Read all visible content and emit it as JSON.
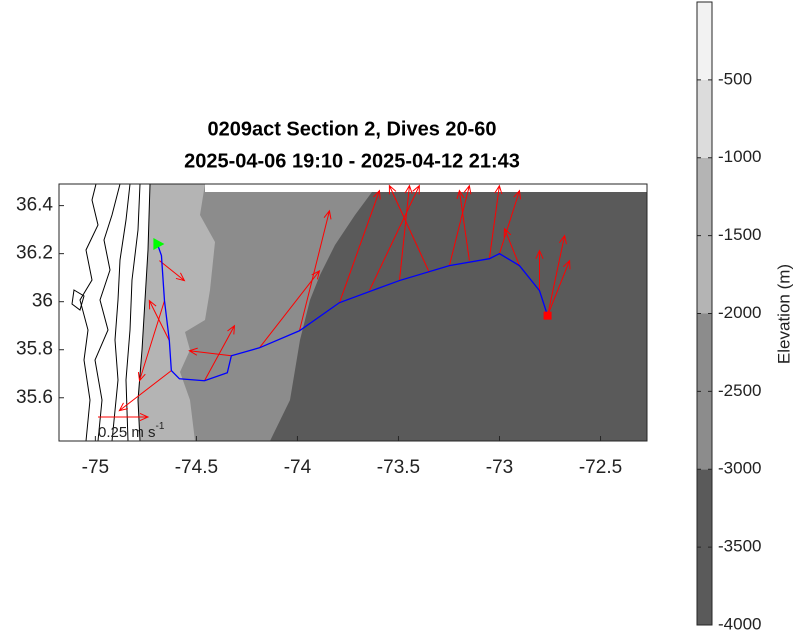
{
  "chart_data": {
    "type": "map",
    "title": [
      "0209act Section 2, Dives 20-60",
      "2025-04-06 19:10 - 2025-04-12 21:43"
    ],
    "xlim": [
      -75.18,
      -72.27
    ],
    "ylim": [
      35.42,
      36.49
    ],
    "xticks": [
      -75,
      -74.5,
      -74,
      -73.5,
      -73,
      -72.5
    ],
    "yticks": [
      35.6,
      35.8,
      36,
      36.2,
      36.4
    ],
    "track": {
      "color": "#0000ff",
      "x": [
        -74.693,
        -74.673,
        -74.658,
        -74.634,
        -74.624,
        -74.584,
        -74.46,
        -74.347,
        -74.327,
        -74.188,
        -73.99,
        -73.792,
        -73.495,
        -73.248,
        -73.05,
        -73.0,
        -72.901,
        -72.802,
        -72.762
      ],
      "y": [
        36.24,
        36.192,
        36.004,
        35.838,
        35.713,
        35.679,
        35.671,
        35.704,
        35.775,
        35.808,
        35.879,
        35.996,
        36.088,
        36.15,
        36.179,
        36.2,
        36.15,
        36.046,
        35.942
      ]
    },
    "start": {
      "x": -74.693,
      "y": 36.24,
      "color": "#00ff00"
    },
    "end": {
      "x": -72.762,
      "y": 35.942,
      "color": "#ff0000"
    },
    "arrows": {
      "color": "#ff0000",
      "x": [
        -74.658,
        -74.634,
        -74.683,
        -74.624,
        -74.46,
        -74.327,
        -74.188,
        -73.99,
        -73.792,
        -73.644,
        -73.495,
        -73.347,
        -73.248,
        -73.149,
        -73.05,
        -73.0,
        -72.901,
        -72.802,
        -72.762,
        -72.762
      ],
      "y": [
        36.004,
        35.838,
        36.171,
        35.713,
        35.671,
        35.775,
        35.808,
        35.879,
        35.996,
        36.046,
        36.088,
        36.121,
        36.15,
        36.171,
        36.179,
        36.2,
        36.15,
        36.046,
        35.942,
        35.942
      ],
      "u": [
        -0.125,
        -0.1,
        0.125,
        -0.26,
        0.15,
        -0.21,
        0.3,
        0.15,
        0.2,
        0.25,
        0.05,
        -0.2,
        0.1,
        -0.05,
        0.05,
        0.1,
        -0.075,
        0,
        0.085,
        0.11
      ],
      "v": [
        -0.4,
        0.2,
        -0.1,
        -0.2,
        0.275,
        0.025,
        0.385,
        0.6,
        0.56,
        0.525,
        0.475,
        0.435,
        0.4,
        0.35,
        0.365,
        0.315,
        0.185,
        0.2,
        0.4,
        0.275
      ]
    },
    "scale_arrow": {
      "value": 0.25,
      "label": "0.25 m s",
      "label_sup": "-1"
    },
    "colorbar": {
      "label": "Elevation (m)",
      "lim": [
        -4000,
        0
      ],
      "ticks": [
        -500,
        -1000,
        -1500,
        -2000,
        -2500,
        -3000,
        -3500,
        -4000
      ],
      "levels": [
        -4000,
        -3000,
        -2000,
        -1000,
        -500,
        0
      ],
      "colors": [
        "#5a5a5a",
        "#8c8c8c",
        "#b4b4b4",
        "#dcdcdc",
        "#f2f2f2"
      ]
    }
  }
}
